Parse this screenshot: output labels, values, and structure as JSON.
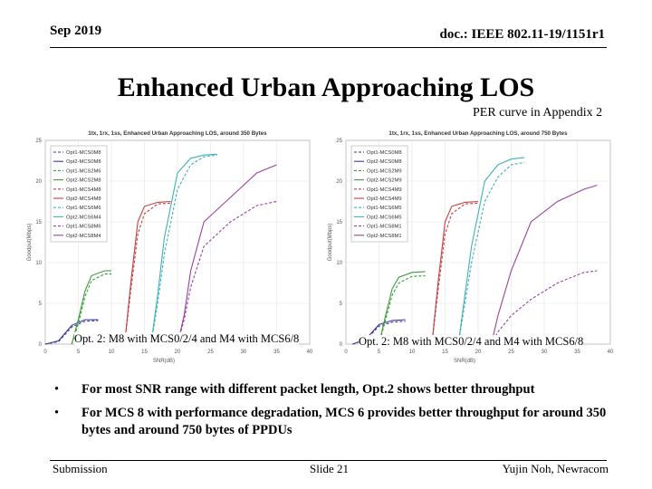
{
  "header": {
    "date": "Sep 2019",
    "doc": "doc.: IEEE 802.11-19/1151r1"
  },
  "title": "Enhanced Urban Approaching LOS",
  "per_note": "PER curve in Appendix 2",
  "charts": [
    {
      "chart_data": {
        "type": "line",
        "title": "1tx, 1rx, 1ss, Enhanced Urban Approaching LOS, around 350 Bytes",
        "xlabel": "SNR(dB)",
        "ylabel": "Goodput(Mbps)",
        "xlim": [
          0,
          40
        ],
        "ylim": [
          0,
          25
        ],
        "xticks": [
          0,
          5,
          10,
          15,
          20,
          25,
          30,
          35,
          40
        ],
        "yticks": [
          0,
          5,
          10,
          15,
          20,
          25
        ],
        "grid": true,
        "legend_position": "top-left",
        "series": [
          {
            "name": "Opt1-MCS0M8",
            "color": "#3a3a9a",
            "dash": true,
            "x": [
              0,
              2,
              4,
              6,
              8
            ],
            "y": [
              0,
              0.3,
              2.1,
              2.8,
              2.9
            ]
          },
          {
            "name": "Opt2-MCS0M8",
            "color": "#3a3a9a",
            "dash": false,
            "x": [
              0,
              2,
              4,
              6,
              8
            ],
            "y": [
              0,
              0.4,
              2.3,
              3.0,
              3.0
            ]
          },
          {
            "name": "Opt1-MCS2M6",
            "color": "#3a9a3a",
            "dash": true,
            "x": [
              4,
              5,
              6,
              7,
              9,
              10
            ],
            "y": [
              0,
              2.5,
              5.8,
              7.8,
              8.6,
              8.6
            ]
          },
          {
            "name": "Opt2-MCS2M8",
            "color": "#3a9a3a",
            "dash": false,
            "x": [
              4,
              5,
              6,
              7,
              9,
              10
            ],
            "y": [
              0,
              3.0,
              6.5,
              8.4,
              9.0,
              9.0
            ]
          },
          {
            "name": "Opt1-MCS4M8",
            "color": "#c04040",
            "dash": true,
            "x": [
              12,
              13,
              14,
              15,
              17,
              19
            ],
            "y": [
              0,
              7,
              13.5,
              16.0,
              17.2,
              17.3
            ]
          },
          {
            "name": "Opt2-MCS4M8",
            "color": "#c04040",
            "dash": false,
            "x": [
              12,
              13,
              14,
              15,
              17,
              19
            ],
            "y": [
              0,
              8,
              15.0,
              16.9,
              17.4,
              17.5
            ]
          },
          {
            "name": "Opt1-MCS6M6",
            "color": "#40b0b8",
            "dash": true,
            "x": [
              16,
              17,
              18,
              20,
              22,
              24,
              26
            ],
            "y": [
              0,
              5,
              11,
              19.0,
              22.0,
              23.0,
              23.2
            ]
          },
          {
            "name": "Opt2-MCS6M4",
            "color": "#40b0b8",
            "dash": false,
            "x": [
              16,
              17,
              18,
              20,
              22,
              24,
              26
            ],
            "y": [
              0,
              6,
              13,
              21.0,
              22.8,
              23.2,
              23.3
            ]
          },
          {
            "name": "Opt1-MCS8M6",
            "color": "#9a40a0",
            "dash": true,
            "x": [
              20,
              21,
              22,
              24,
              28,
              32,
              35
            ],
            "y": [
              0,
              3,
              7,
              12.0,
              15.0,
              17.0,
              17.5
            ]
          },
          {
            "name": "Opt2-MCS8M4",
            "color": "#9a40a0",
            "dash": false,
            "x": [
              20,
              21,
              22,
              24,
              28,
              32,
              35
            ],
            "y": [
              0,
              3.5,
              9,
              15.0,
              18.0,
              21.0,
              22.0
            ]
          }
        ]
      },
      "caption": "Opt. 2: M8 with MCS0/2/4 and M4 with MCS6/8"
    },
    {
      "chart_data": {
        "type": "line",
        "title": "1tx, 1rx, 1ss, Enhanced Urban Approaching LOS, around 750 Bytes",
        "xlabel": "SNR(dB)",
        "ylabel": "Goodput(Mbps)",
        "xlim": [
          0,
          40
        ],
        "ylim": [
          0,
          25
        ],
        "xticks": [
          0,
          5,
          10,
          15,
          20,
          25,
          30,
          35,
          40
        ],
        "yticks": [
          0,
          5,
          10,
          15,
          20,
          25
        ],
        "grid": true,
        "legend_position": "top-left",
        "series": [
          {
            "name": "Opt1-MCS0M8",
            "color": "#3a3a9a",
            "dash": true,
            "x": [
              1,
              3,
              5,
              7,
              9
            ],
            "y": [
              0,
              0.5,
              2.2,
              2.7,
              2.8
            ]
          },
          {
            "name": "Opt2-MCS0M8",
            "color": "#3a3a9a",
            "dash": false,
            "x": [
              1,
              3,
              5,
              7,
              9
            ],
            "y": [
              0,
              0.6,
              2.4,
              2.9,
              3.0
            ]
          },
          {
            "name": "Opt1-MCS2M9",
            "color": "#3a9a3a",
            "dash": true,
            "x": [
              5,
              6,
              7,
              8,
              10,
              12
            ],
            "y": [
              0,
              3.0,
              6.0,
              7.5,
              8.3,
              8.4
            ]
          },
          {
            "name": "Opt2-MCS2M9",
            "color": "#3a9a3a",
            "dash": false,
            "x": [
              5,
              6,
              7,
              8,
              10,
              12
            ],
            "y": [
              0,
              3.5,
              6.8,
              8.2,
              8.8,
              8.9
            ]
          },
          {
            "name": "Opt1-MCS4M9",
            "color": "#c04040",
            "dash": true,
            "x": [
              13,
              14,
              15,
              16,
              18,
              20
            ],
            "y": [
              0,
              7,
              13.5,
              16.0,
              17.2,
              17.3
            ]
          },
          {
            "name": "Opt2-MCS4M9",
            "color": "#c04040",
            "dash": false,
            "x": [
              13,
              14,
              15,
              16,
              18,
              20
            ],
            "y": [
              0,
              8,
              15.0,
              16.9,
              17.4,
              17.5
            ]
          },
          {
            "name": "Opt1-MCS6M5",
            "color": "#40b0b8",
            "dash": true,
            "x": [
              17,
              18,
              19,
              21,
              23,
              25,
              27
            ],
            "y": [
              0,
              5,
              10,
              17.5,
              20.5,
              22.0,
              22.3
            ]
          },
          {
            "name": "Opt2-MCS6M5",
            "color": "#40b0b8",
            "dash": false,
            "x": [
              17,
              18,
              19,
              21,
              23,
              25,
              27
            ],
            "y": [
              0,
              6,
              12,
              20.0,
              22.0,
              22.7,
              22.9
            ]
          },
          {
            "name": "Opt1-MCS8M1",
            "color": "#9a40a0",
            "dash": true,
            "x": [
              22,
              23,
              25,
              28,
              32,
              36,
              38
            ],
            "y": [
              0,
              1.5,
              3.5,
              5.5,
              7.5,
              8.8,
              9.0
            ]
          },
          {
            "name": "Opt2-MCS8M1",
            "color": "#9a40a0",
            "dash": false,
            "x": [
              22,
              23,
              25,
              28,
              32,
              36,
              38
            ],
            "y": [
              0,
              3.5,
              9,
              15.0,
              17.5,
              19.0,
              19.5
            ]
          }
        ]
      },
      "caption": "Opt. 2: M8 with MCS0/2/4 and M4 with MCS6/8"
    }
  ],
  "bullets": [
    "For most SNR range with different packet length, Opt.2 shows better throughput",
    "For MCS 8 with performance degradation, MCS 6 provides better throughput for around 350 bytes and around 750 bytes of PPDUs"
  ],
  "bullet_glyph": "•",
  "footer": {
    "left": "Submission",
    "center": "Slide 21",
    "right": "Yujin Noh, Newracom"
  }
}
